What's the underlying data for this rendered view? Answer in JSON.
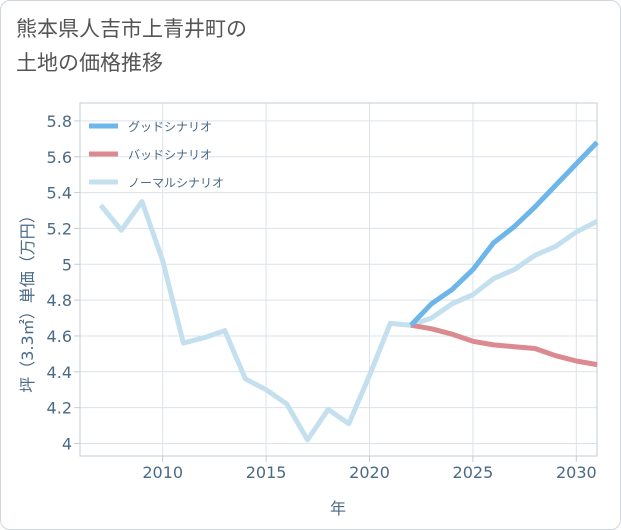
{
  "title_line1": "熊本県人吉市上青井町の",
  "title_line2": "土地の価格推移",
  "chart_data": {
    "type": "line",
    "xlabel": "年",
    "ylabel": "坪（3.3㎡）単価（万円）",
    "xlim": [
      2006,
      2031
    ],
    "ylim": [
      3.93,
      5.9
    ],
    "x_ticks": [
      2010,
      2015,
      2020,
      2025,
      2030
    ],
    "y_ticks": [
      4,
      4.2,
      4.4,
      4.6,
      4.8,
      5,
      5.2,
      5.4,
      5.6,
      5.8
    ],
    "grid": true,
    "legend_position": "top-left",
    "series": [
      {
        "name": "グッドシナリオ",
        "color": "#6cb6e9",
        "x": [
          2022,
          2023,
          2024,
          2025,
          2026,
          2027,
          2028,
          2029,
          2030,
          2031
        ],
        "values": [
          4.66,
          4.78,
          4.86,
          4.97,
          5.12,
          5.21,
          5.32,
          5.44,
          5.56,
          5.68
        ]
      },
      {
        "name": "バッドシナリオ",
        "color": "#db8a90",
        "x": [
          2022,
          2023,
          2024,
          2025,
          2026,
          2027,
          2028,
          2029,
          2030,
          2031
        ],
        "values": [
          4.66,
          4.64,
          4.61,
          4.57,
          4.55,
          4.54,
          4.53,
          4.49,
          4.46,
          4.44
        ]
      },
      {
        "name": "ノーマルシナリオ",
        "color": "#c4e0ef",
        "x": [
          2007,
          2008,
          2009,
          2010,
          2011,
          2012,
          2013,
          2014,
          2015,
          2016,
          2017,
          2018,
          2019,
          2020,
          2021,
          2022,
          2023,
          2024,
          2025,
          2026,
          2027,
          2028,
          2029,
          2030,
          2031
        ],
        "values": [
          5.33,
          5.19,
          5.35,
          5.02,
          4.56,
          4.59,
          4.63,
          4.36,
          4.3,
          4.22,
          4.02,
          4.19,
          4.11,
          4.38,
          4.67,
          4.66,
          4.7,
          4.78,
          4.83,
          4.92,
          4.97,
          5.05,
          5.1,
          5.18,
          5.24
        ]
      }
    ]
  }
}
